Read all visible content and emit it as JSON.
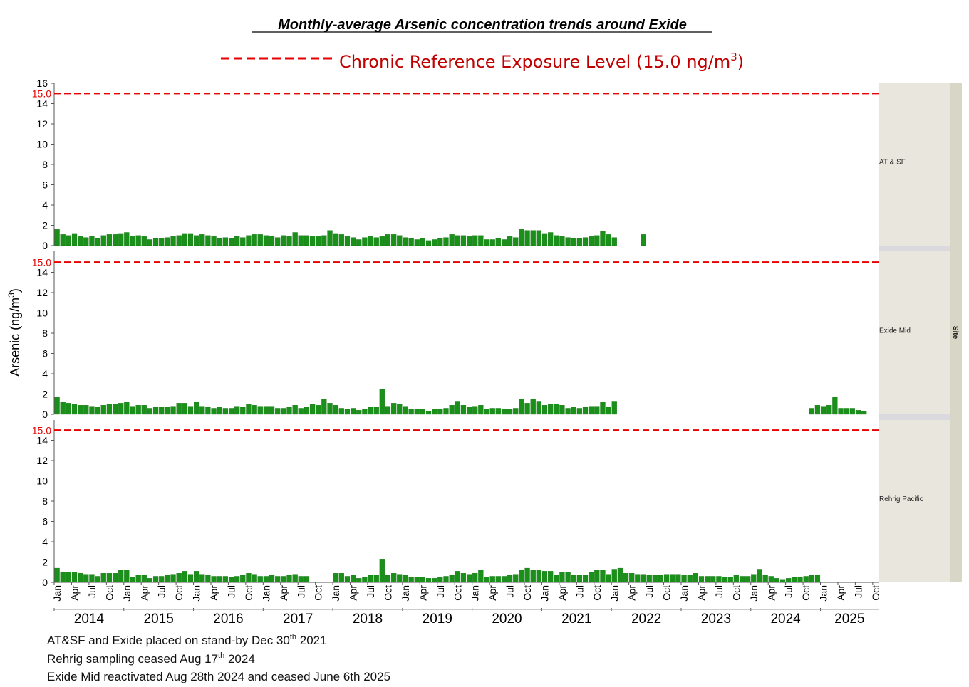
{
  "title": "Monthly-average Arsenic concentration trends around Exide",
  "legend": {
    "line_label": "Chronic Reference Exposure Level (15.0 ng/m",
    "superscript": "3",
    "close": ")"
  },
  "ylabel": "Arsenic (ng/m",
  "ylabel_sup": "3",
  "ylabel_close": ")",
  "site_axis_title": "Site",
  "notes": [
    {
      "text": "AT&SF and Exide placed on stand-by Dec 30",
      "sup": "th",
      "tail": " 2021"
    },
    {
      "text": "Rehrig sampling ceased Aug 17",
      "sup": "th",
      "tail": " 2024"
    },
    {
      "text": "Exide Mid reactivated Aug 28th 2024 and ceased June 6th 2025",
      "sup": "",
      "tail": ""
    }
  ],
  "colors": {
    "bar": "#1a8f1a",
    "bar_edge": "#0f6a0f",
    "reference_line": "#e60000",
    "legend_text": "#c00000",
    "side_panel": "#e8e6dd",
    "side_strip": "#d8d6c6",
    "panel_gap": "#d9d9de"
  },
  "chart_data": {
    "type": "bar",
    "x_start": "2014-01",
    "x_end": "2025-06",
    "yticks": [
      0,
      2,
      4,
      6,
      8,
      10,
      12,
      14
    ],
    "top_panel_extra_tick": 16,
    "ylim": [
      0,
      16
    ],
    "reference_level": 15.0,
    "reference_label": "15.0",
    "month_tick_labels": [
      "Jan",
      "Apr",
      "Jul",
      "Oct"
    ],
    "years": [
      "2014",
      "2015",
      "2016",
      "2017",
      "2018",
      "2019",
      "2020",
      "2021",
      "2022",
      "2023",
      "2024",
      "2025"
    ],
    "grid": false,
    "series": [
      {
        "name": "AT & SF",
        "values": [
          1.6,
          1.1,
          1.0,
          1.2,
          0.9,
          0.8,
          0.9,
          0.7,
          1.0,
          1.1,
          1.1,
          1.2,
          1.3,
          0.9,
          1.0,
          0.9,
          0.6,
          0.7,
          0.7,
          0.8,
          0.9,
          1.0,
          1.2,
          1.2,
          1.0,
          1.1,
          1.0,
          0.9,
          0.7,
          0.8,
          0.7,
          0.9,
          0.8,
          1.0,
          1.1,
          1.1,
          1.0,
          0.9,
          0.8,
          1.0,
          0.9,
          1.3,
          1.0,
          1.0,
          0.9,
          0.9,
          1.0,
          1.5,
          1.2,
          1.1,
          0.9,
          0.8,
          0.6,
          0.8,
          0.9,
          0.8,
          0.9,
          1.1,
          1.1,
          1.0,
          0.8,
          0.7,
          0.6,
          0.7,
          0.5,
          0.6,
          0.7,
          0.8,
          1.1,
          1.0,
          1.0,
          0.9,
          1.0,
          1.0,
          0.6,
          0.6,
          0.7,
          0.6,
          0.9,
          0.8,
          1.6,
          1.5,
          1.5,
          1.5,
          1.2,
          1.3,
          1.0,
          0.9,
          0.8,
          0.7,
          0.7,
          0.8,
          0.9,
          1.0,
          1.4,
          1.1,
          0.8,
          null,
          null,
          null,
          null,
          1.1,
          null,
          null,
          null,
          null,
          null,
          null,
          null,
          null,
          null,
          null,
          null,
          null,
          null,
          null,
          null,
          null,
          null,
          null,
          null,
          null,
          null,
          null,
          null,
          null,
          null,
          null,
          null,
          null,
          null,
          null,
          null,
          null,
          null,
          null,
          null,
          null,
          null,
          null,
          null,
          null
        ]
      },
      {
        "name": "Exide Mid",
        "values": [
          1.7,
          1.2,
          1.1,
          1.0,
          0.9,
          0.9,
          0.8,
          0.7,
          0.9,
          1.0,
          1.0,
          1.1,
          1.2,
          0.8,
          0.9,
          0.9,
          0.6,
          0.7,
          0.7,
          0.7,
          0.8,
          1.1,
          1.1,
          0.8,
          1.2,
          0.8,
          0.7,
          0.6,
          0.7,
          0.6,
          0.6,
          0.8,
          0.7,
          1.0,
          0.9,
          0.8,
          0.8,
          0.8,
          0.6,
          0.6,
          0.7,
          0.9,
          0.6,
          0.7,
          1.0,
          0.9,
          1.5,
          1.1,
          0.9,
          0.6,
          0.5,
          0.6,
          0.4,
          0.5,
          0.7,
          0.7,
          2.5,
          0.8,
          1.1,
          1.0,
          0.8,
          0.5,
          0.5,
          0.5,
          0.3,
          0.5,
          0.5,
          0.6,
          0.9,
          1.3,
          0.9,
          0.7,
          0.8,
          0.9,
          0.5,
          0.6,
          0.6,
          0.5,
          0.5,
          0.6,
          1.5,
          1.1,
          1.5,
          1.3,
          0.9,
          1.0,
          1.0,
          0.9,
          0.6,
          0.7,
          0.6,
          0.7,
          0.8,
          0.8,
          1.2,
          0.7,
          1.3,
          null,
          null,
          null,
          null,
          null,
          null,
          null,
          null,
          null,
          null,
          null,
          null,
          null,
          null,
          null,
          null,
          null,
          null,
          null,
          null,
          null,
          null,
          null,
          null,
          null,
          null,
          null,
          null,
          null,
          null,
          null,
          null,
          null,
          0.6,
          0.9,
          0.8,
          0.9,
          1.7,
          0.6,
          0.6,
          0.6,
          0.4,
          0.3
        ]
      },
      {
        "name": "Rehrig Pacific",
        "values": [
          1.4,
          1.0,
          1.0,
          1.0,
          0.9,
          0.8,
          0.8,
          0.6,
          0.9,
          0.9,
          0.9,
          1.2,
          1.2,
          0.5,
          0.7,
          0.7,
          0.4,
          0.6,
          0.6,
          0.7,
          0.8,
          0.9,
          1.1,
          0.8,
          1.1,
          0.8,
          0.7,
          0.6,
          0.6,
          0.6,
          0.5,
          0.6,
          0.7,
          0.9,
          0.8,
          0.6,
          0.6,
          0.7,
          0.6,
          0.6,
          0.7,
          0.8,
          0.6,
          0.6,
          null,
          null,
          null,
          null,
          0.9,
          0.9,
          0.6,
          0.7,
          0.4,
          0.5,
          0.7,
          0.7,
          2.3,
          0.7,
          0.9,
          0.8,
          0.7,
          0.5,
          0.5,
          0.5,
          0.4,
          0.4,
          0.5,
          0.6,
          0.7,
          1.1,
          0.9,
          0.8,
          0.9,
          1.2,
          0.5,
          0.6,
          0.6,
          0.6,
          0.7,
          0.8,
          1.2,
          1.4,
          1.2,
          1.2,
          1.1,
          1.1,
          0.7,
          1.0,
          1.0,
          0.7,
          0.7,
          0.7,
          1.0,
          1.2,
          1.2,
          0.8,
          1.3,
          1.4,
          0.9,
          0.9,
          0.8,
          0.8,
          0.7,
          0.7,
          0.7,
          0.8,
          0.8,
          0.8,
          0.7,
          0.7,
          0.9,
          0.6,
          0.6,
          0.6,
          0.6,
          0.5,
          0.5,
          0.7,
          0.6,
          0.6,
          0.8,
          1.3,
          0.7,
          0.6,
          0.4,
          0.3,
          0.4,
          0.5,
          0.5,
          0.6,
          0.7,
          0.7,
          null,
          null,
          null,
          null,
          null,
          null,
          null,
          null,
          null,
          null,
          null
        ]
      }
    ]
  }
}
